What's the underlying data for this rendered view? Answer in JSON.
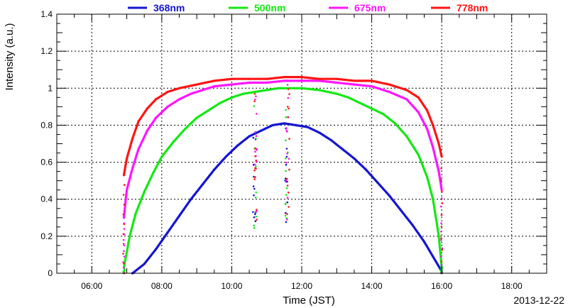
{
  "chart_data": {
    "type": "scatter",
    "xlabel": "Time (JST)",
    "ylabel": "Intensity (a.u.)",
    "date": "2013-12-22",
    "xlim": [
      "05:00",
      "19:00"
    ],
    "ylim": [
      0,
      1.4
    ],
    "x_ticks": [
      "06:00",
      "08:00",
      "10:00",
      "12:00",
      "14:00",
      "16:00",
      "18:00"
    ],
    "y_ticks": [
      "0",
      "0.2",
      "0.4",
      "0.6",
      "0.8",
      "1",
      "1.2",
      "1.4"
    ],
    "grid": true,
    "legend_position": "top",
    "series": [
      {
        "name": "368nm",
        "color": "#1414d2",
        "points": [
          [
            "07:10",
            0.0
          ],
          [
            "07:30",
            0.05
          ],
          [
            "07:50",
            0.13
          ],
          [
            "08:10",
            0.22
          ],
          [
            "08:30",
            0.31
          ],
          [
            "08:50",
            0.4
          ],
          [
            "09:10",
            0.48
          ],
          [
            "09:30",
            0.56
          ],
          [
            "09:50",
            0.63
          ],
          [
            "10:10",
            0.69
          ],
          [
            "10:30",
            0.74
          ],
          [
            "10:50",
            0.77
          ],
          [
            "11:10",
            0.8
          ],
          [
            "11:30",
            0.81
          ],
          [
            "11:50",
            0.8
          ],
          [
            "12:10",
            0.79
          ],
          [
            "12:30",
            0.76
          ],
          [
            "12:50",
            0.72
          ],
          [
            "13:10",
            0.67
          ],
          [
            "13:30",
            0.62
          ],
          [
            "13:50",
            0.56
          ],
          [
            "14:10",
            0.49
          ],
          [
            "14:30",
            0.42
          ],
          [
            "14:50",
            0.34
          ],
          [
            "15:10",
            0.26
          ],
          [
            "15:30",
            0.17
          ],
          [
            "15:45",
            0.09
          ],
          [
            "16:00",
            0.01
          ]
        ]
      },
      {
        "name": "500nm",
        "color": "#14e814",
        "points": [
          [
            "06:55",
            0.03
          ],
          [
            "07:05",
            0.2
          ],
          [
            "07:15",
            0.32
          ],
          [
            "07:30",
            0.44
          ],
          [
            "07:45",
            0.54
          ],
          [
            "08:00",
            0.63
          ],
          [
            "08:20",
            0.71
          ],
          [
            "08:40",
            0.78
          ],
          [
            "09:00",
            0.84
          ],
          [
            "09:20",
            0.88
          ],
          [
            "09:40",
            0.92
          ],
          [
            "10:00",
            0.95
          ],
          [
            "10:20",
            0.97
          ],
          [
            "10:40",
            0.98
          ],
          [
            "11:00",
            0.99
          ],
          [
            "11:20",
            1.0
          ],
          [
            "11:40",
            1.0
          ],
          [
            "12:00",
            1.0
          ],
          [
            "12:30",
            0.99
          ],
          [
            "13:00",
            0.97
          ],
          [
            "13:20",
            0.95
          ],
          [
            "13:40",
            0.92
          ],
          [
            "14:00",
            0.89
          ],
          [
            "14:20",
            0.86
          ],
          [
            "14:40",
            0.81
          ],
          [
            "15:00",
            0.74
          ],
          [
            "15:20",
            0.64
          ],
          [
            "15:35",
            0.52
          ],
          [
            "15:45",
            0.4
          ],
          [
            "15:55",
            0.2
          ],
          [
            "16:00",
            0.03
          ]
        ]
      },
      {
        "name": "675nm",
        "color": "#ff14ff",
        "points": [
          [
            "06:55",
            0.3
          ],
          [
            "07:00",
            0.45
          ],
          [
            "07:10",
            0.57
          ],
          [
            "07:20",
            0.67
          ],
          [
            "07:35",
            0.77
          ],
          [
            "07:50",
            0.84
          ],
          [
            "08:10",
            0.9
          ],
          [
            "08:30",
            0.94
          ],
          [
            "08:50",
            0.97
          ],
          [
            "09:10",
            0.99
          ],
          [
            "09:30",
            1.01
          ],
          [
            "10:00",
            1.02
          ],
          [
            "10:30",
            1.03
          ],
          [
            "11:00",
            1.03
          ],
          [
            "11:30",
            1.04
          ],
          [
            "12:00",
            1.04
          ],
          [
            "12:30",
            1.04
          ],
          [
            "13:00",
            1.03
          ],
          [
            "13:30",
            1.02
          ],
          [
            "14:00",
            1.01
          ],
          [
            "14:30",
            0.98
          ],
          [
            "15:00",
            0.94
          ],
          [
            "15:20",
            0.87
          ],
          [
            "15:35",
            0.78
          ],
          [
            "15:45",
            0.68
          ],
          [
            "15:55",
            0.55
          ],
          [
            "16:00",
            0.45
          ]
        ]
      },
      {
        "name": "778nm",
        "color": "#ff1414",
        "points": [
          [
            "06:55",
            0.53
          ],
          [
            "07:00",
            0.62
          ],
          [
            "07:10",
            0.73
          ],
          [
            "07:20",
            0.82
          ],
          [
            "07:35",
            0.89
          ],
          [
            "07:50",
            0.94
          ],
          [
            "08:10",
            0.98
          ],
          [
            "08:30",
            1.0
          ],
          [
            "09:00",
            1.02
          ],
          [
            "09:30",
            1.04
          ],
          [
            "10:00",
            1.05
          ],
          [
            "10:30",
            1.05
          ],
          [
            "11:00",
            1.05
          ],
          [
            "11:30",
            1.06
          ],
          [
            "12:00",
            1.06
          ],
          [
            "12:30",
            1.05
          ],
          [
            "13:00",
            1.05
          ],
          [
            "13:30",
            1.04
          ],
          [
            "14:00",
            1.04
          ],
          [
            "14:30",
            1.02
          ],
          [
            "15:00",
            0.99
          ],
          [
            "15:20",
            0.95
          ],
          [
            "15:35",
            0.88
          ],
          [
            "15:45",
            0.8
          ],
          [
            "15:55",
            0.7
          ],
          [
            "16:00",
            0.63
          ]
        ]
      }
    ],
    "dropouts": [
      {
        "time": "10:40",
        "min": 0.24
      },
      {
        "time": "11:35",
        "min": 0.25
      }
    ]
  }
}
